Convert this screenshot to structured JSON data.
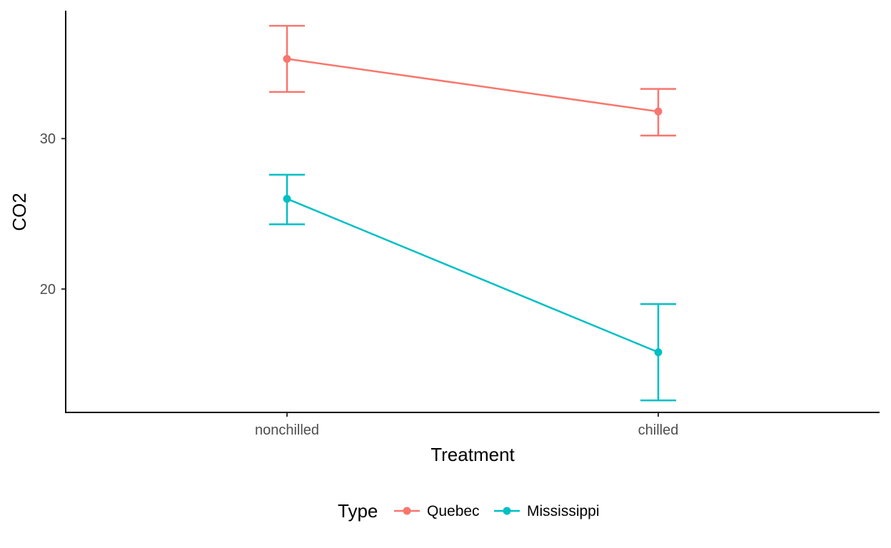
{
  "chart_data": {
    "type": "line",
    "xlabel": "Treatment",
    "ylabel": "CO2",
    "categories": [
      "nonchilled",
      "chilled"
    ],
    "y_ticks": [
      20,
      30
    ],
    "ylim": [
      11.8,
      38.5
    ],
    "grid": false,
    "legend": {
      "title": "Type",
      "position": "bottom"
    },
    "series": [
      {
        "name": "Quebec",
        "color": "#F8766D",
        "values": [
          35.3,
          31.8
        ],
        "error_low": [
          33.1,
          30.2
        ],
        "error_high": [
          37.5,
          33.3
        ]
      },
      {
        "name": "Mississippi",
        "color": "#00BFC4",
        "values": [
          26.0,
          15.8
        ],
        "error_low": [
          24.3,
          12.6
        ],
        "error_high": [
          27.6,
          19.0
        ]
      }
    ]
  }
}
